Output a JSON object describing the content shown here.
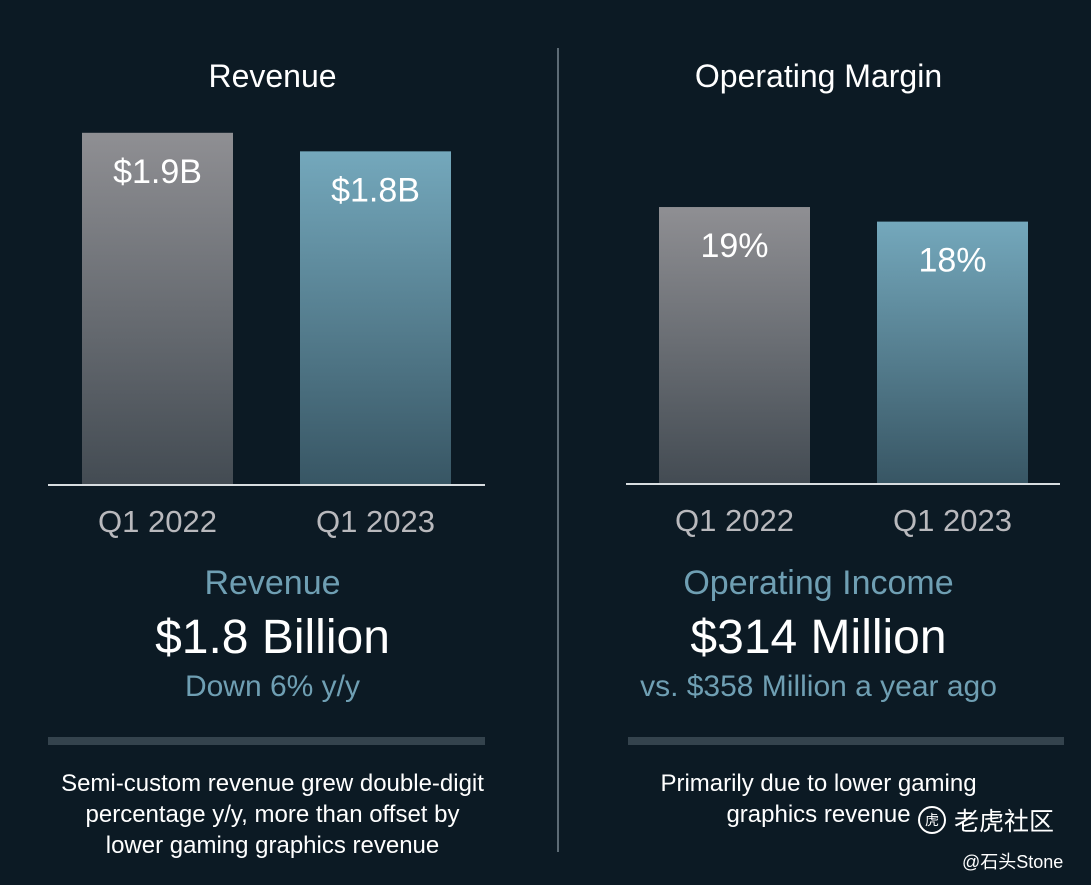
{
  "colors": {
    "background": "#0c1a24",
    "bar_prior": "#8f8f93",
    "bar_current": "#74a8bc",
    "accent_text": "#6f9fb3"
  },
  "left": {
    "title": "Revenue",
    "metric_label": "Revenue",
    "metric_value": "$1.8 Billion",
    "metric_sub": "Down 6% y/y",
    "note_lines": [
      "Semi-custom revenue grew double-digit",
      "percentage y/y, more than offset by",
      "lower gaming graphics revenue"
    ]
  },
  "right": {
    "title": "Operating Margin",
    "metric_label": "Operating Income",
    "metric_value": "$314 Million",
    "metric_sub": "vs. $358 Million a year ago",
    "note_lines": [
      "Primarily due to lower gaming",
      "graphics revenue"
    ]
  },
  "watermark": {
    "icon": "tiger-logo-icon",
    "brand": "老虎社区",
    "handle": "@石头Stone"
  },
  "chart_data": [
    {
      "type": "bar",
      "title": "Revenue",
      "categories": [
        "Q1 2022",
        "Q1 2023"
      ],
      "values": [
        1.9,
        1.8
      ],
      "data_labels": [
        "$1.9B",
        "$1.8B"
      ],
      "unit": "$B",
      "ylim": [
        0,
        2.05
      ],
      "grid": false,
      "legend": "none"
    },
    {
      "type": "bar",
      "title": "Operating Margin",
      "categories": [
        "Q1 2022",
        "Q1 2023"
      ],
      "values": [
        19,
        18
      ],
      "data_labels": [
        "19%",
        "18%"
      ],
      "unit": "%",
      "ylim": [
        0,
        26
      ],
      "grid": false,
      "legend": "none"
    }
  ]
}
